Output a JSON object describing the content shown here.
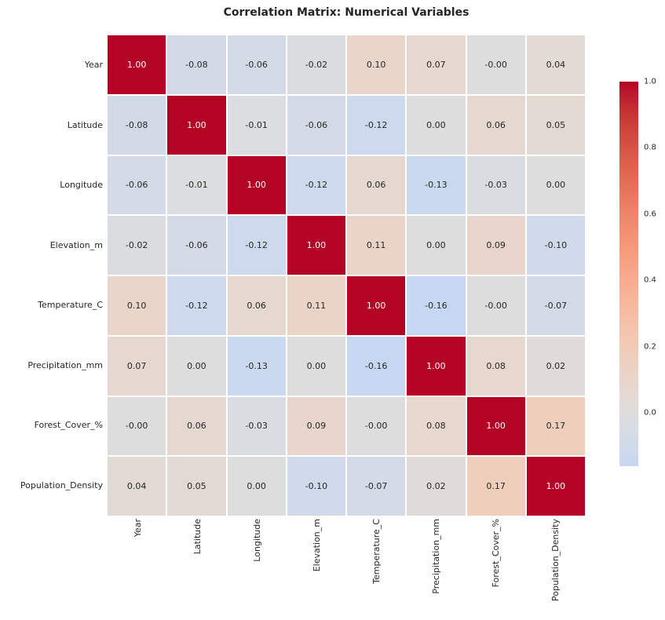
{
  "chart_data": {
    "type": "heatmap",
    "title": "Correlation Matrix: Numerical Variables",
    "categories": [
      "Year",
      "Latitude",
      "Longitude",
      "Elevation_m",
      "Temperature_C",
      "Precipitation_mm",
      "Forest_Cover_%",
      "Population_Density"
    ],
    "matrix": [
      [
        "1.00",
        "-0.08",
        "-0.06",
        "-0.02",
        "0.10",
        "0.07",
        "-0.00",
        "0.04"
      ],
      [
        "-0.08",
        "1.00",
        "-0.01",
        "-0.06",
        "-0.12",
        "0.00",
        "0.06",
        "0.05"
      ],
      [
        "-0.06",
        "-0.01",
        "1.00",
        "-0.12",
        "0.06",
        "-0.13",
        "-0.03",
        "0.00"
      ],
      [
        "-0.02",
        "-0.06",
        "-0.12",
        "1.00",
        "0.11",
        "0.00",
        "0.09",
        "-0.10"
      ],
      [
        "0.10",
        "-0.12",
        "0.06",
        "0.11",
        "1.00",
        "-0.16",
        "-0.00",
        "-0.07"
      ],
      [
        "0.07",
        "0.00",
        "-0.13",
        "0.00",
        "-0.16",
        "1.00",
        "0.08",
        "0.02"
      ],
      [
        "-0.00",
        "0.06",
        "-0.03",
        "0.09",
        "-0.00",
        "0.08",
        "1.00",
        "0.17"
      ],
      [
        "0.04",
        "0.05",
        "0.00",
        "-0.10",
        "-0.07",
        "0.02",
        "0.17",
        "1.00"
      ]
    ],
    "colorbar": {
      "ticks": [
        "1.0",
        "0.8",
        "0.6",
        "0.4",
        "0.2",
        "0.0"
      ],
      "vmax": 1.0,
      "vmin": -0.16,
      "position": "right"
    },
    "colormap": {
      "name": "coolwarm",
      "domain": [
        -1,
        1
      ],
      "stops": [
        [
          0.0,
          [
            59,
            76,
            192
          ]
        ],
        [
          0.03125,
          [
            68,
            90,
            204
          ]
        ],
        [
          0.0625,
          [
            77,
            104,
            215
          ]
        ],
        [
          0.09375,
          [
            87,
            117,
            225
          ]
        ],
        [
          0.125,
          [
            98,
            130,
            234
          ]
        ],
        [
          0.15625,
          [
            108,
            142,
            241
          ]
        ],
        [
          0.1875,
          [
            119,
            154,
            247
          ]
        ],
        [
          0.21875,
          [
            130,
            165,
            251
          ]
        ],
        [
          0.25,
          [
            141,
            176,
            254
          ]
        ],
        [
          0.28125,
          [
            152,
            185,
            255
          ]
        ],
        [
          0.3125,
          [
            163,
            194,
            255
          ]
        ],
        [
          0.34375,
          [
            174,
            201,
            253
          ]
        ],
        [
          0.375,
          [
            184,
            208,
            249
          ]
        ],
        [
          0.40625,
          [
            194,
            213,
            244
          ]
        ],
        [
          0.4375,
          [
            204,
            217,
            238
          ]
        ],
        [
          0.46875,
          [
            213,
            219,
            230
          ]
        ],
        [
          0.5,
          [
            221,
            221,
            221
          ]
        ],
        [
          0.53125,
          [
            229,
            216,
            209
          ]
        ],
        [
          0.5625,
          [
            236,
            211,
            197
          ]
        ],
        [
          0.59375,
          [
            241,
            204,
            185
          ]
        ],
        [
          0.625,
          [
            245,
            196,
            173
          ]
        ],
        [
          0.65625,
          [
            247,
            187,
            160
          ]
        ],
        [
          0.6875,
          [
            247,
            177,
            148
          ]
        ],
        [
          0.71875,
          [
            247,
            166,
            135
          ]
        ],
        [
          0.75,
          [
            244,
            154,
            123
          ]
        ],
        [
          0.78125,
          [
            241,
            141,
            111
          ]
        ],
        [
          0.8125,
          [
            236,
            127,
            99
          ]
        ],
        [
          0.84375,
          [
            229,
            112,
            88
          ]
        ],
        [
          0.875,
          [
            222,
            96,
            77
          ]
        ],
        [
          0.90625,
          [
            213,
            80,
            66
          ]
        ],
        [
          0.9375,
          [
            203,
            62,
            56
          ]
        ],
        [
          0.96875,
          [
            192,
            40,
            47
          ]
        ],
        [
          1.0,
          [
            180,
            4,
            38
          ]
        ]
      ]
    },
    "layout": {
      "grid": "off",
      "cell_gap_color": "#ffffff"
    }
  },
  "colors": {
    "background": "#ffffff",
    "title_text": "#262626",
    "label_text": "#262626",
    "annotation_dark": "#262626",
    "annotation_light": "#ffffff",
    "max_red": "#b40426"
  }
}
